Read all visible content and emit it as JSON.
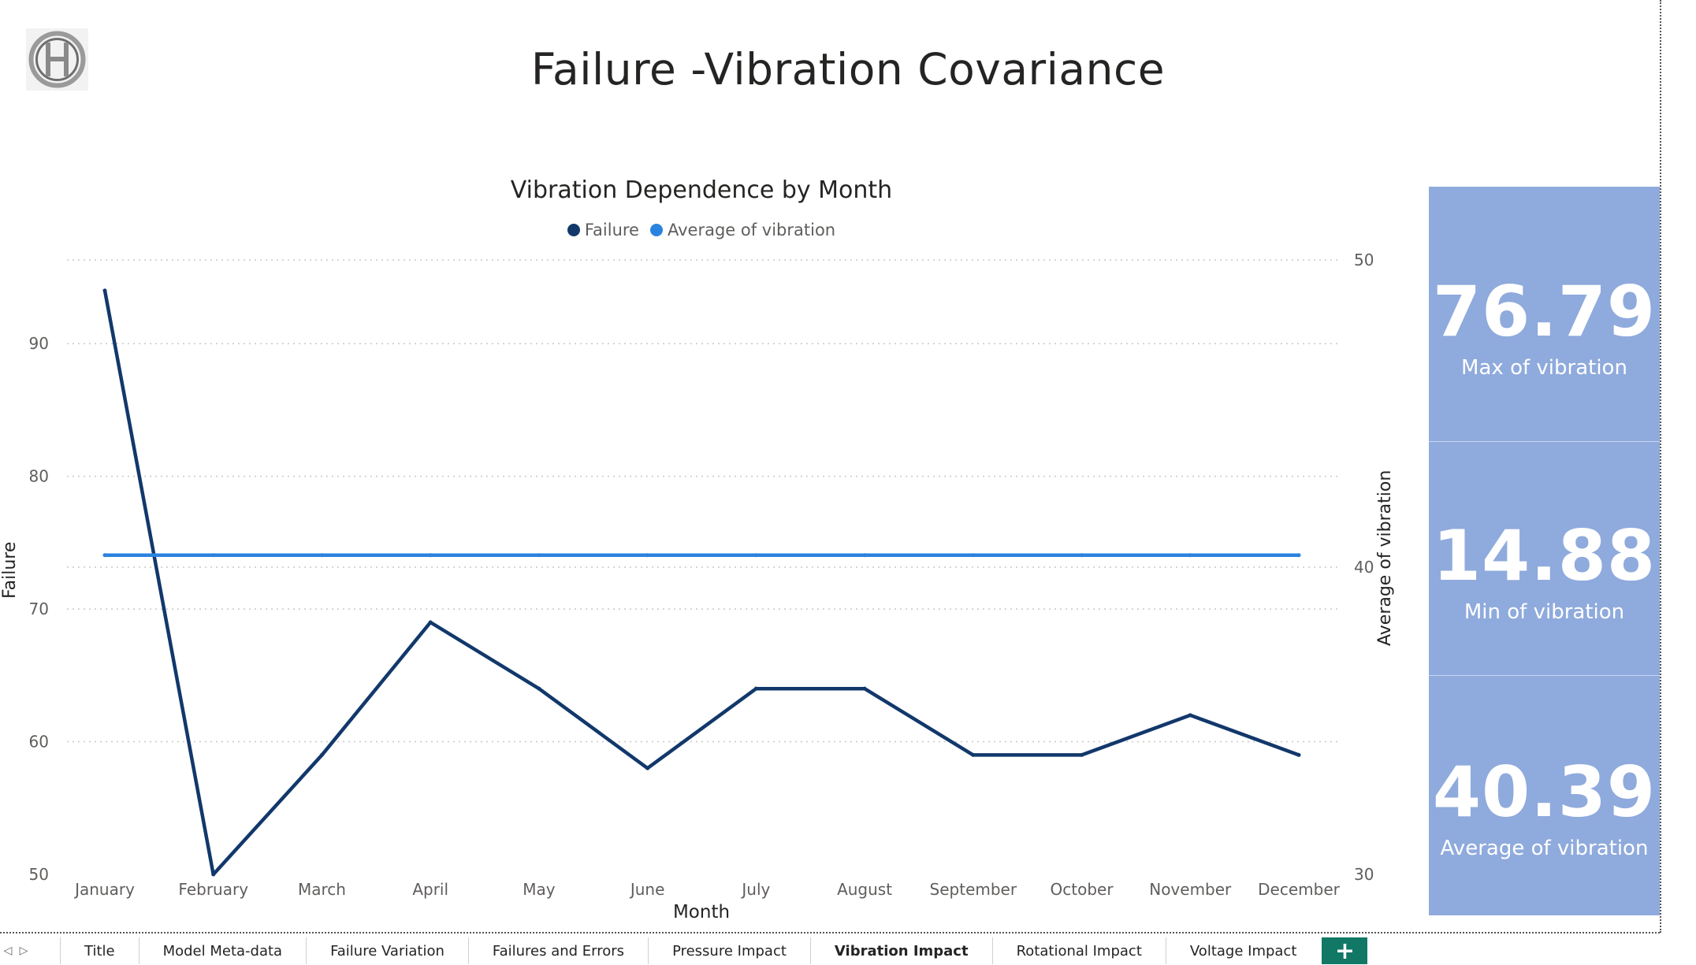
{
  "page": {
    "title": "Failure -Vibration Covariance",
    "logo_icon": "bosch-logo-icon"
  },
  "chart_data": {
    "type": "line",
    "title": "Vibration Dependence by Month",
    "xlabel": "Month",
    "ylabel": "Failure",
    "y2label": "Average of vibration",
    "categories": [
      "January",
      "February",
      "March",
      "April",
      "May",
      "June",
      "July",
      "August",
      "September",
      "October",
      "November",
      "December"
    ],
    "series": [
      {
        "name": "Failure",
        "axis": "left",
        "color": "#12386b",
        "values": [
          94,
          50,
          59,
          69,
          64,
          58,
          64,
          64,
          59,
          59,
          62,
          59
        ]
      },
      {
        "name": "Average of vibration",
        "axis": "right",
        "color": "#2b83e0",
        "values": [
          40.39,
          40.39,
          40.39,
          40.39,
          40.39,
          40.39,
          40.39,
          40.39,
          40.39,
          40.39,
          40.39,
          40.39
        ]
      }
    ],
    "ylim": [
      50,
      95
    ],
    "yticks": [
      50,
      60,
      70,
      80,
      90
    ],
    "y2lim": [
      30,
      50
    ],
    "y2ticks": [
      30,
      40,
      50
    ],
    "grid": true,
    "legend_position": "top-center"
  },
  "kpis": [
    {
      "value": "76.79",
      "label": "Max of vibration"
    },
    {
      "value": "14.88",
      "label": "Min of vibration"
    },
    {
      "value": "40.39",
      "label": "Average of vibration"
    }
  ],
  "tabs": {
    "prev_icon": "triangle-left-icon",
    "next_icon": "triangle-right-icon",
    "prev_glyph": "◁",
    "next_glyph": "▷",
    "items": [
      {
        "label": "Title"
      },
      {
        "label": "Model Meta-data"
      },
      {
        "label": "Failure Variation"
      },
      {
        "label": "Failures and Errors"
      },
      {
        "label": "Pressure Impact"
      },
      {
        "label": "Vibration Impact",
        "active": true
      },
      {
        "label": "Rotational Impact"
      },
      {
        "label": "Voltage Impact"
      }
    ],
    "add_label": "+"
  }
}
